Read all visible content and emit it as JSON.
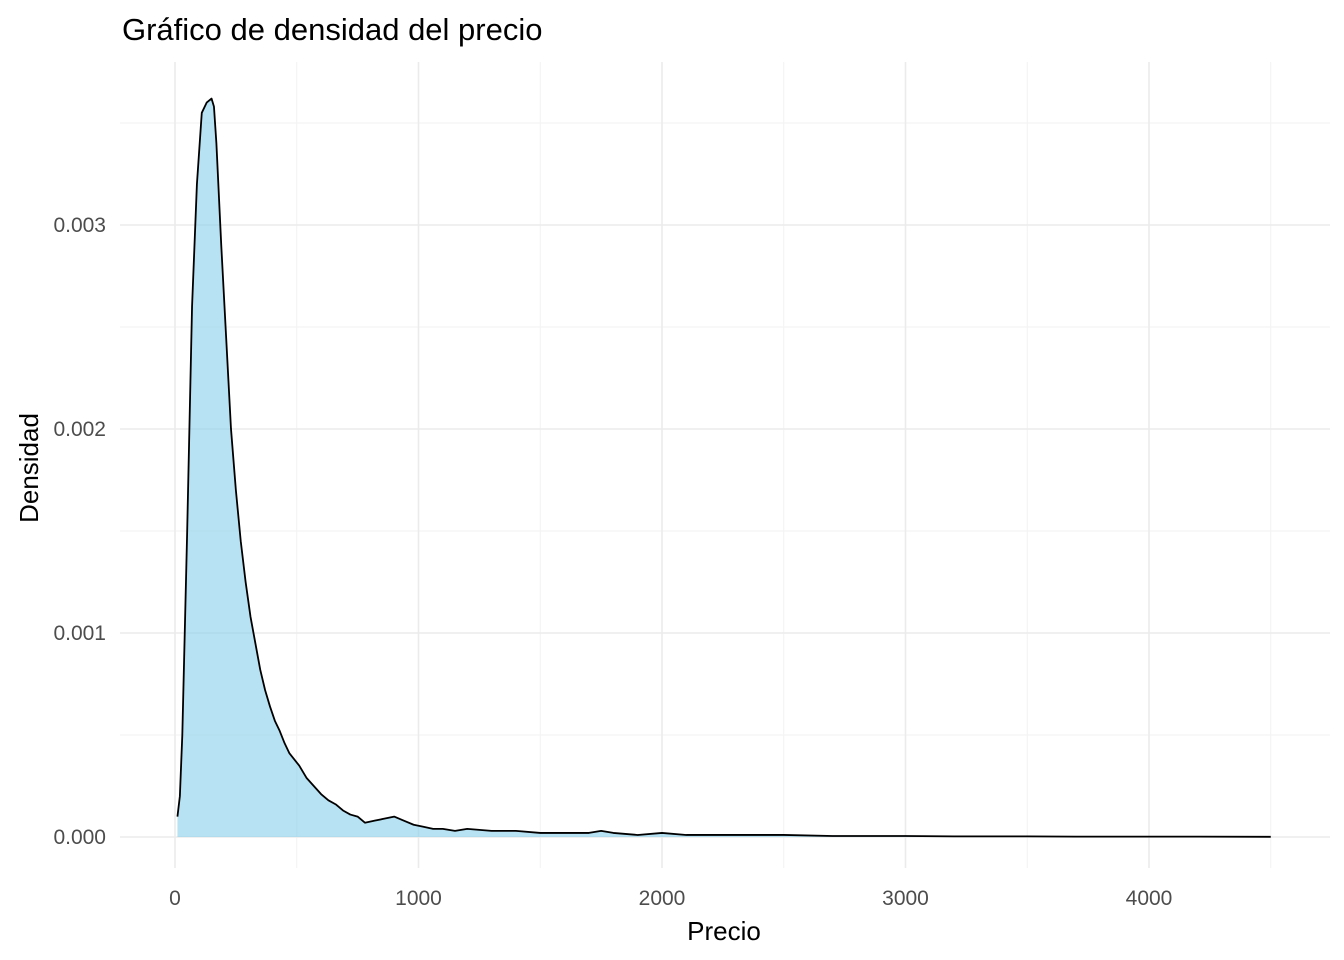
{
  "chart_data": {
    "type": "area",
    "title": "Gráfico de densidad del precio",
    "xlabel": "Precio",
    "ylabel": "Densidad",
    "xlim": [
      0,
      4500
    ],
    "ylim": [
      0,
      0.0036
    ],
    "x_ticks": [
      0,
      1000,
      2000,
      3000,
      4000
    ],
    "x_tick_labels": [
      "0",
      "1000",
      "2000",
      "3000",
      "4000"
    ],
    "y_ticks": [
      0,
      0.001,
      0.002,
      0.003
    ],
    "y_tick_labels": [
      "0.000",
      "0.001",
      "0.002",
      "0.003"
    ],
    "x_minor_ticks": [
      500,
      1500,
      2500,
      3500,
      4500
    ],
    "y_minor_ticks": [
      0.0005,
      0.0015,
      0.0025,
      0.0035
    ],
    "grid": true,
    "legend": "none",
    "colors": {
      "fill": "#87ceeb",
      "fill_opacity": 0.6,
      "line": "#000000",
      "grid": "#ebebeb",
      "tick_text": "#4d4d4d"
    },
    "x": [
      10,
      20,
      30,
      50,
      70,
      90,
      110,
      130,
      150,
      160,
      170,
      190,
      210,
      230,
      250,
      270,
      290,
      310,
      330,
      350,
      370,
      390,
      410,
      430,
      450,
      470,
      490,
      510,
      540,
      570,
      600,
      630,
      660,
      690,
      720,
      750,
      780,
      820,
      860,
      900,
      940,
      980,
      1020,
      1060,
      1100,
      1150,
      1200,
      1300,
      1400,
      1500,
      1600,
      1700,
      1750,
      1800,
      1900,
      2000,
      2100,
      2200,
      2300,
      2500,
      2700,
      3000,
      3200,
      3500,
      3700,
      4000,
      4200,
      4500
    ],
    "y": [
      0.0001,
      0.0002,
      0.0005,
      0.0015,
      0.0026,
      0.0032,
      0.00355,
      0.0036,
      0.00362,
      0.00358,
      0.0034,
      0.0029,
      0.00245,
      0.002,
      0.0017,
      0.00145,
      0.00125,
      0.00108,
      0.00095,
      0.00082,
      0.00072,
      0.00064,
      0.00057,
      0.00052,
      0.00046,
      0.00041,
      0.00038,
      0.00035,
      0.00029,
      0.00025,
      0.00021,
      0.00018,
      0.00016,
      0.00013,
      0.00011,
      0.0001,
      7e-05,
      8e-05,
      9e-05,
      0.0001,
      8e-05,
      6e-05,
      5e-05,
      4e-05,
      4e-05,
      3e-05,
      4e-05,
      3e-05,
      3e-05,
      2e-05,
      2e-05,
      2e-05,
      3e-05,
      2e-05,
      1e-05,
      2e-05,
      1e-05,
      1e-05,
      1e-05,
      1e-05,
      5e-06,
      5e-06,
      3e-06,
      3e-06,
      2e-06,
      2e-06,
      2e-06,
      1e-06
    ]
  }
}
